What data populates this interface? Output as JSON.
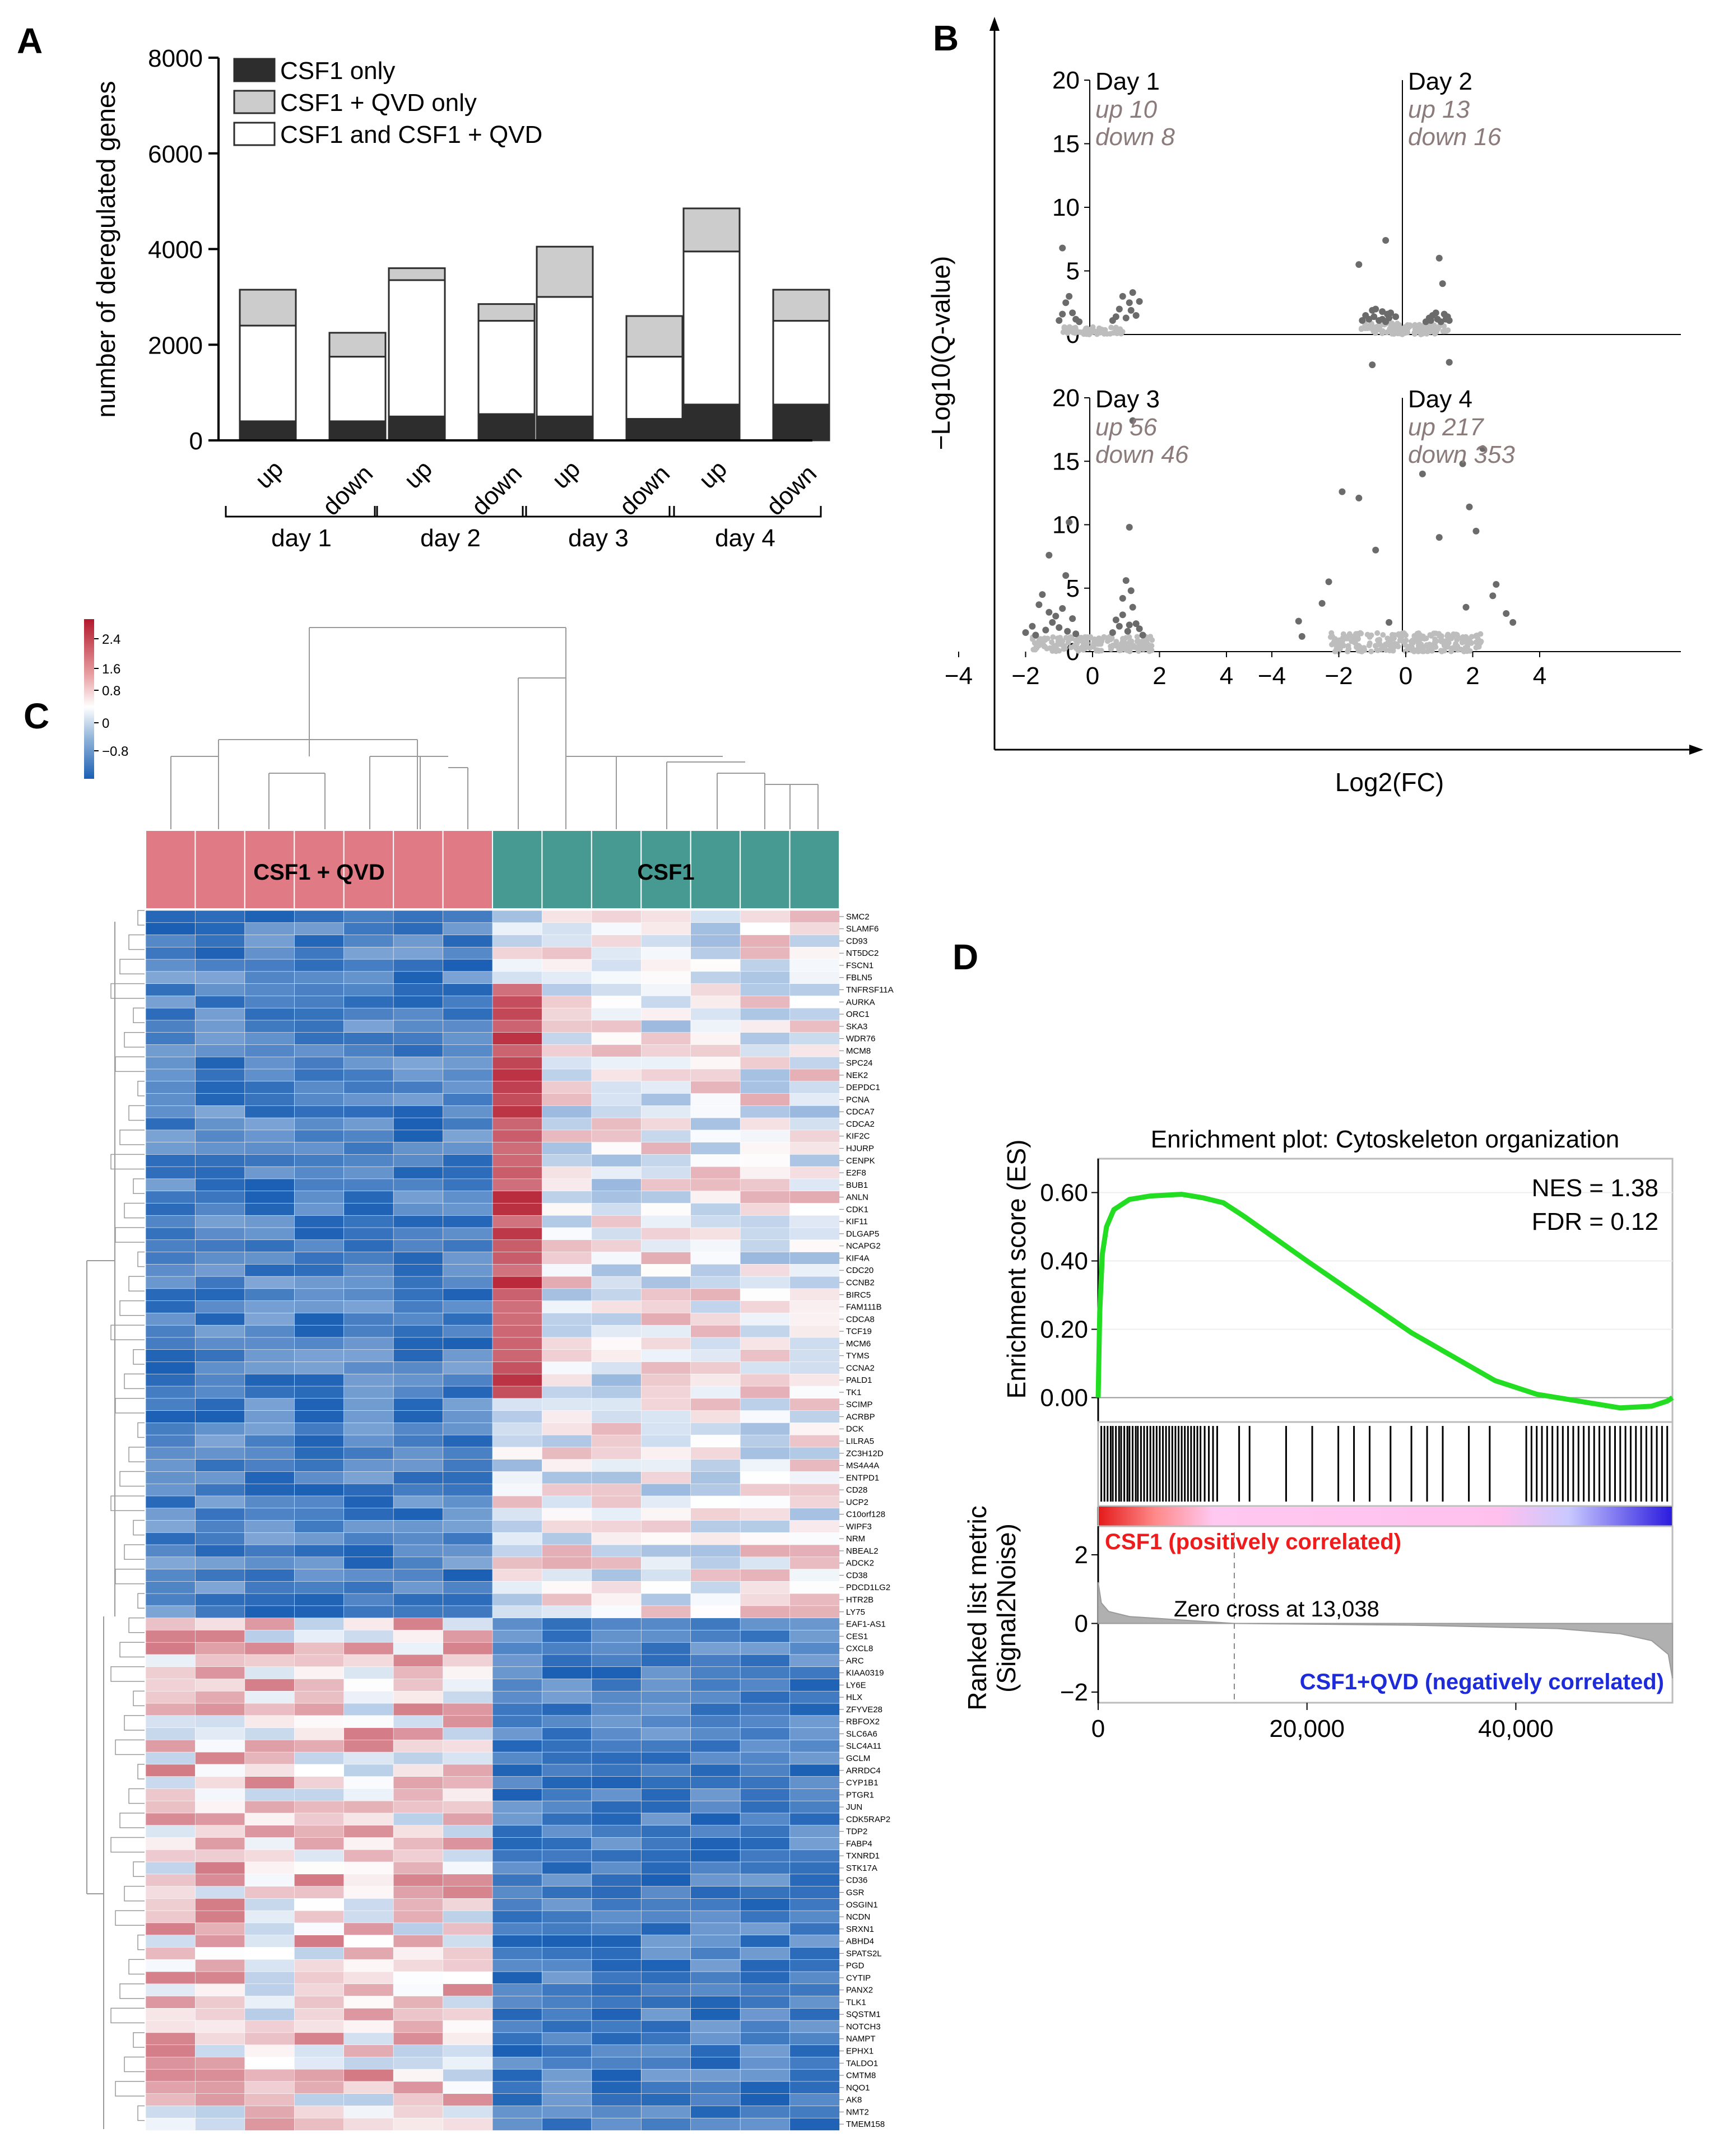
{
  "panels": [
    "A",
    "B",
    "C",
    "D"
  ],
  "chart_data": [
    {
      "panel": "A",
      "type": "bar",
      "stacked": true,
      "ylabel": "number of deregulated genes",
      "ylim": [
        0,
        8000
      ],
      "yticks": [
        "0",
        "2000",
        "4000",
        "6000",
        "8000"
      ],
      "groups": [
        "day 1",
        "day 2",
        "day 3",
        "day 4"
      ],
      "sublabels": [
        "up",
        "down"
      ],
      "legend": [
        "CSF1 only",
        "CSF1 + QVD only",
        "CSF1 and CSF1 + QVD"
      ],
      "colors": [
        "#2d2d2d",
        "#cccccc",
        "#ffffff"
      ],
      "bars": [
        {
          "group": "day 1",
          "dir": "up",
          "csf1_only": 400,
          "shared": 2000,
          "qvd_only": 750
        },
        {
          "group": "day 1",
          "dir": "down",
          "csf1_only": 400,
          "shared": 1350,
          "qvd_only": 500
        },
        {
          "group": "day 2",
          "dir": "up",
          "csf1_only": 500,
          "shared": 2850,
          "qvd_only": 250
        },
        {
          "group": "day 2",
          "dir": "down",
          "csf1_only": 550,
          "shared": 1950,
          "qvd_only": 350
        },
        {
          "group": "day 3",
          "dir": "up",
          "csf1_only": 500,
          "shared": 2500,
          "qvd_only": 1050
        },
        {
          "group": "day 3",
          "dir": "down",
          "csf1_only": 450,
          "shared": 1300,
          "qvd_only": 850
        },
        {
          "group": "day 4",
          "dir": "up",
          "csf1_only": 750,
          "shared": 3200,
          "qvd_only": 900
        },
        {
          "group": "day 4",
          "dir": "down",
          "csf1_only": 750,
          "shared": 1750,
          "qvd_only": 650
        }
      ]
    },
    {
      "panel": "B",
      "type": "scatter",
      "title": "Volcano plots",
      "xlabel": "Log2(FC)",
      "ylabel": "−Log10(Q-value)",
      "xlim": [
        -4,
        4
      ],
      "ylim": [
        0,
        20
      ],
      "xticks": [
        "−4",
        "−2",
        "0",
        "2",
        "4"
      ],
      "yticks": [
        "0",
        "5",
        "10",
        "15",
        "20"
      ],
      "subplots": [
        {
          "day": "Day 1",
          "up": "up 10",
          "down": "down 8",
          "sig_points": [
            [
              -0.9,
              6.8
            ],
            [
              -0.8,
              2.5
            ],
            [
              -0.6,
              1.7
            ],
            [
              -0.7,
              3.0
            ],
            [
              -0.5,
              1.2
            ],
            [
              -1.0,
              1.1
            ],
            [
              0.9,
              3.0
            ],
            [
              1.1,
              2.5
            ],
            [
              1.0,
              1.3
            ],
            [
              1.2,
              3.3
            ],
            [
              0.7,
              1.4
            ],
            [
              1.3,
              1.5
            ],
            [
              0.8,
              2.0
            ],
            [
              -0.9,
              1.6
            ],
            [
              1.4,
              2.6
            ],
            [
              -0.4,
              1.0
            ],
            [
              0.6,
              1.1
            ],
            [
              1.15,
              1.9
            ]
          ]
        },
        {
          "day": "Day 2",
          "up": "up 13",
          "down": "down 16",
          "sig_points": [
            [
              -1.4,
              5.5
            ],
            [
              -0.6,
              7.4
            ],
            [
              -0.9,
              2.0
            ],
            [
              -0.7,
              1.8
            ],
            [
              -1.1,
              1.2
            ],
            [
              -0.5,
              1.3
            ],
            [
              -0.8,
              1.1
            ],
            [
              -1.2,
              1.5
            ],
            [
              -0.6,
              1.0
            ],
            [
              -0.3,
              1.4
            ],
            [
              -0.95,
              1.4
            ],
            [
              -1.3,
              1.1
            ],
            [
              -0.45,
              1.7
            ],
            [
              -1.0,
              1.9
            ],
            [
              -0.7,
              1.2
            ],
            [
              -0.55,
              1.6
            ],
            [
              1.0,
              6.0
            ],
            [
              1.1,
              4.0
            ],
            [
              0.9,
              1.7
            ],
            [
              1.2,
              1.2
            ],
            [
              0.7,
              1.3
            ],
            [
              0.8,
              1.5
            ],
            [
              1.3,
              1.1
            ],
            [
              0.6,
              1.0
            ],
            [
              1.15,
              1.6
            ],
            [
              1.05,
              1.0
            ],
            [
              0.95,
              1.2
            ],
            [
              1.25,
              1.4
            ],
            [
              0.75,
              1.1
            ]
          ]
        },
        {
          "day": "Day 3",
          "up": "up 56",
          "down": "down 46",
          "sig_points": [
            [
              1.2,
              18.2
            ],
            [
              -0.7,
              10.2
            ],
            [
              1.1,
              9.8
            ],
            [
              -1.3,
              7.6
            ],
            [
              -0.8,
              6.0
            ],
            [
              1.0,
              5.6
            ],
            [
              -1.5,
              4.5
            ],
            [
              -1.6,
              3.7
            ],
            [
              -0.9,
              3.4
            ],
            [
              -1.1,
              2.8
            ],
            [
              1.2,
              3.5
            ],
            [
              0.9,
              2.9
            ],
            [
              1.3,
              2.2
            ],
            [
              0.7,
              2.5
            ],
            [
              -1.8,
              2.0
            ],
            [
              -1.2,
              2.3
            ],
            [
              -0.6,
              2.6
            ],
            [
              1.4,
              1.8
            ],
            [
              0.8,
              2.0
            ],
            [
              1.05,
              1.6
            ],
            [
              -1.4,
              1.7
            ],
            [
              -0.5,
              1.4
            ],
            [
              -1.0,
              1.9
            ],
            [
              0.6,
              1.5
            ],
            [
              1.5,
              1.3
            ],
            [
              1.1,
              2.1
            ],
            [
              -2.0,
              1.5
            ],
            [
              -1.7,
              1.3
            ],
            [
              0.9,
              4.2
            ],
            [
              -1.3,
              3.1
            ],
            [
              1.15,
              4.8
            ],
            [
              -0.75,
              1.6
            ]
          ]
        },
        {
          "day": "Day 4",
          "up": "up 217",
          "down": "down 353",
          "sig_points": [
            [
              1.3,
              22.8
            ],
            [
              -1.0,
              22.6
            ],
            [
              2.3,
              16.0
            ],
            [
              1.7,
              14.8
            ],
            [
              -1.9,
              12.6
            ],
            [
              -1.4,
              12.1
            ],
            [
              0.5,
              14.0
            ],
            [
              1.9,
              11.4
            ],
            [
              2.1,
              9.5
            ],
            [
              1.0,
              9.0
            ],
            [
              -0.9,
              8.0
            ],
            [
              2.7,
              5.3
            ],
            [
              2.6,
              4.4
            ],
            [
              -2.3,
              5.5
            ],
            [
              -2.5,
              3.8
            ],
            [
              3.0,
              3.0
            ],
            [
              3.2,
              2.3
            ],
            [
              -3.2,
              2.4
            ],
            [
              -3.1,
              1.2
            ],
            [
              1.8,
              3.5
            ],
            [
              -0.5,
              2.3
            ]
          ]
        }
      ]
    },
    {
      "panel": "C",
      "type": "heatmap",
      "colorbar_ticks": [
        "2.4",
        "1.6",
        "0.8",
        "0",
        "−0.8"
      ],
      "groups": [
        "CSF1 + QVD",
        "CSF1"
      ],
      "genes": [
        "SMC2",
        "SLAMF6",
        "CD93",
        "NT5DC2",
        "FSCN1",
        "FBLN5",
        "TNFRSF11A",
        "AURKA",
        "ORC1",
        "SKA3",
        "WDR76",
        "MCM8",
        "SPC24",
        "NEK2",
        "DEPDC1",
        "PCNA",
        "CDCA7",
        "CDCA2",
        "KIF2C",
        "HJURP",
        "CENPK",
        "E2F8",
        "BUB1",
        "ANLN",
        "CDK1",
        "KIF11",
        "DLGAP5",
        "NCAPG2",
        "KIF4A",
        "CDC20",
        "CCNB2",
        "BIRC5",
        "FAM111B",
        "CDCA8",
        "TCF19",
        "MCM6",
        "TYMS",
        "CCNA2",
        "PALD1",
        "TK1",
        "SCIMP",
        "ACRBP",
        "DCK",
        "LILRA5",
        "ZC3H12D",
        "MS4A4A",
        "ENTPD1",
        "CD28",
        "UCP2",
        "C10orf128",
        "WIPF3",
        "NRM",
        "NBEAL2",
        "ADCK2",
        "CD38",
        "PDCD1LG2",
        "HTR2B",
        "LY75",
        "EAF1-AS1",
        "CES1",
        "CXCL8",
        "ARC",
        "KIAA0319",
        "LY6E",
        "HLX",
        "ZFYVE28",
        "RBFOX2",
        "SLC6A6",
        "SLC4A11",
        "GCLM",
        "ARRDC4",
        "CYP1B1",
        "PTGR1",
        "JUN",
        "CDK5RAP2",
        "TDP2",
        "FABP4",
        "TXNRD1",
        "STK17A",
        "CD36",
        "GSR",
        "OSGIN1",
        "NCDN",
        "SRXN1",
        "ABHD4",
        "SPATS2L",
        "PGD",
        "CYTIP",
        "PANX2",
        "TLK1",
        "SQSTM1",
        "NOTCH3",
        "NAMPT",
        "EPHX1",
        "TALDO1",
        "CMTM8",
        "NQO1",
        "AK8",
        "NMT2",
        "TMEM158"
      ]
    },
    {
      "panel": "D",
      "type": "line",
      "title": "Enrichment plot: Cytoskeleton organization",
      "ylabel": "Enrichment score (ES)",
      "ylabel2": [
        "Ranked list metric",
        "(Signal2Noise)"
      ],
      "yticks": [
        "0.00",
        "0.20",
        "0.40",
        "0.60"
      ],
      "yticks2": [
        "−2",
        "0",
        "2"
      ],
      "xticks": [
        "0",
        "20,000",
        "40,000"
      ],
      "xlim": [
        0,
        55000
      ],
      "ylim": [
        -0.05,
        0.65
      ],
      "nes": "NES = 1.38",
      "fdr": "FDR = 0.12",
      "pos_label": "CSF1 (positively correlated)",
      "neg_label": "CSF1+QVD (negatively correlated)",
      "zero_cross": "Zero cross at 13,038",
      "zero_cross_x": 13038,
      "es_curve": [
        [
          0,
          0.0
        ],
        [
          150,
          0.25
        ],
        [
          400,
          0.42
        ],
        [
          800,
          0.5
        ],
        [
          1500,
          0.55
        ],
        [
          3000,
          0.58
        ],
        [
          5000,
          0.59
        ],
        [
          8000,
          0.595
        ],
        [
          10000,
          0.585
        ],
        [
          12000,
          0.57
        ],
        [
          14000,
          0.53
        ],
        [
          20000,
          0.4
        ],
        [
          30000,
          0.19
        ],
        [
          38000,
          0.05
        ],
        [
          42000,
          0.01
        ],
        [
          46000,
          -0.01
        ],
        [
          50000,
          -0.03
        ],
        [
          53000,
          -0.025
        ],
        [
          54500,
          -0.01
        ],
        [
          55000,
          0.0
        ]
      ],
      "hits": [
        300,
        600,
        900,
        1200,
        1400,
        1700,
        2000,
        2200,
        2500,
        2800,
        3000,
        3300,
        3600,
        3800,
        4100,
        4400,
        4700,
        5000,
        5300,
        5600,
        5900,
        6200,
        6500,
        6800,
        7100,
        7400,
        7700,
        8000,
        8300,
        8600,
        8900,
        9200,
        9500,
        9800,
        10200,
        10600,
        11000,
        11400,
        13500,
        14500,
        18000,
        20500,
        23000,
        24500,
        26000,
        28000,
        30000,
        31500,
        33000,
        35500,
        37500,
        41000,
        41500,
        42000,
        42500,
        43000,
        43500,
        44000,
        44500,
        45000,
        45500,
        46000,
        46500,
        47000,
        47500,
        48000,
        48500,
        49000,
        49500,
        50000,
        50500,
        51000,
        51500,
        52000,
        52500,
        53000,
        53500,
        54000,
        54500
      ]
    }
  ]
}
